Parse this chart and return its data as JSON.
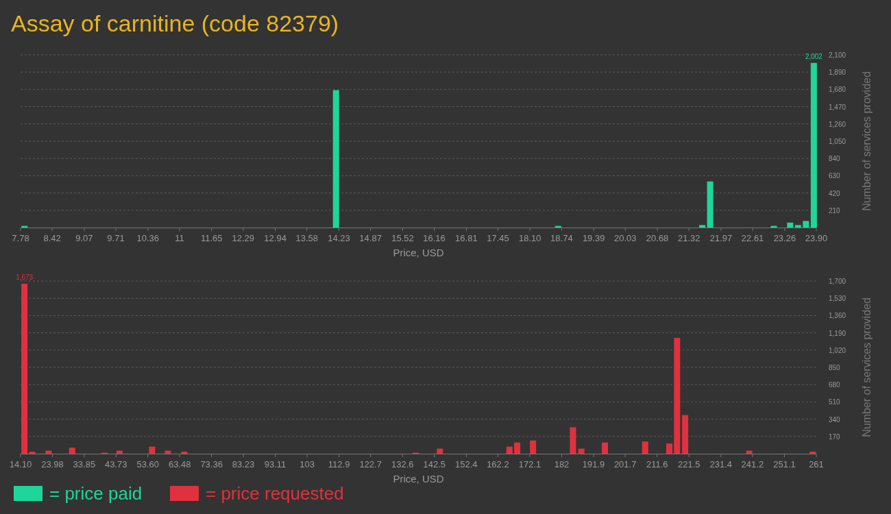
{
  "chart_data": [
    {
      "type": "bar",
      "title": "Assay of carnitine (code 82379)",
      "xlabel": "Price, USD",
      "ylabel": "Number of services provided",
      "x": [
        7.86,
        14.17,
        18.67,
        21.59,
        21.75,
        23.04,
        23.37,
        23.53,
        23.69,
        23.85
      ],
      "series": [
        {
          "name": "= price paid",
          "color": "#1fd69a",
          "values": [
            20,
            1670,
            20,
            30,
            560,
            20,
            60,
            30,
            80,
            2002
          ],
          "value_labels": [
            null,
            null,
            null,
            null,
            null,
            null,
            null,
            null,
            null,
            "2,002"
          ]
        }
      ],
      "xlim": [
        7.78,
        23.9
      ],
      "xticks": [
        7.78,
        8.42,
        9.07,
        9.71,
        10.36,
        11,
        11.65,
        12.29,
        12.94,
        13.58,
        14.23,
        14.87,
        15.52,
        16.16,
        16.81,
        17.45,
        {
          "value": 18.1,
          "label": "18.10"
        },
        18.74,
        19.39,
        20.03,
        20.68,
        21.32,
        21.97,
        22.61,
        23.26,
        {
          "value": 23.9,
          "label": "23.90"
        }
      ],
      "ylim": [
        0,
        2100
      ],
      "yticks": [
        210,
        420,
        630,
        840,
        {
          "value": 1050,
          "label": "1,050"
        },
        {
          "value": 1260,
          "label": "1,260"
        },
        {
          "value": 1470,
          "label": "1,470"
        },
        {
          "value": 1680,
          "label": "1,680"
        },
        {
          "value": 1890,
          "label": "1,890"
        },
        {
          "value": 2100,
          "label": "2,100"
        }
      ],
      "grid": "y",
      "legend": "bottom left"
    },
    {
      "type": "bar",
      "xlabel": "Price, USD",
      "ylabel": "Number of services provided",
      "x": [
        15.3,
        17.7,
        22.8,
        30.1,
        40.2,
        44.8,
        54.9,
        59.8,
        64.9,
        136.7,
        144.2,
        165.8,
        168.2,
        173.1,
        185.5,
        188.1,
        195.4,
        207.9,
        215.4,
        217.8,
        220.3,
        240.2,
        259.9
      ],
      "series": [
        {
          "name": "= price requested",
          "color": "#e0313f",
          "values": [
            1673,
            20,
            30,
            60,
            10,
            30,
            70,
            30,
            20,
            10,
            50,
            70,
            110,
            130,
            260,
            50,
            110,
            120,
            100,
            1140,
            380,
            30,
            20
          ],
          "value_labels": [
            "1,673",
            null,
            null,
            null,
            null,
            null,
            null,
            null,
            null,
            null,
            null,
            null,
            null,
            null,
            null,
            null,
            null,
            null,
            null,
            null,
            null,
            null,
            null
          ]
        }
      ],
      "xlim": [
        14.1,
        261
      ],
      "xticks": [
        {
          "value": 14.1,
          "label": "14.10"
        },
        23.98,
        33.85,
        43.73,
        {
          "value": 53.6,
          "label": "53.60"
        },
        63.48,
        73.36,
        83.23,
        93.11,
        103,
        112.9,
        122.7,
        132.6,
        142.5,
        152.4,
        162.2,
        172.1,
        182,
        191.9,
        201.7,
        211.6,
        221.5,
        231.4,
        241.2,
        251.1,
        261
      ],
      "ylim": [
        0,
        1700
      ],
      "yticks": [
        170,
        340,
        510,
        680,
        850,
        {
          "value": 1020,
          "label": "1,020"
        },
        {
          "value": 1190,
          "label": "1,190"
        },
        {
          "value": 1360,
          "label": "1,360"
        },
        {
          "value": 1530,
          "label": "1,530"
        },
        {
          "value": 1700,
          "label": "1,700"
        }
      ],
      "grid": "y",
      "legend": "bottom left"
    }
  ]
}
